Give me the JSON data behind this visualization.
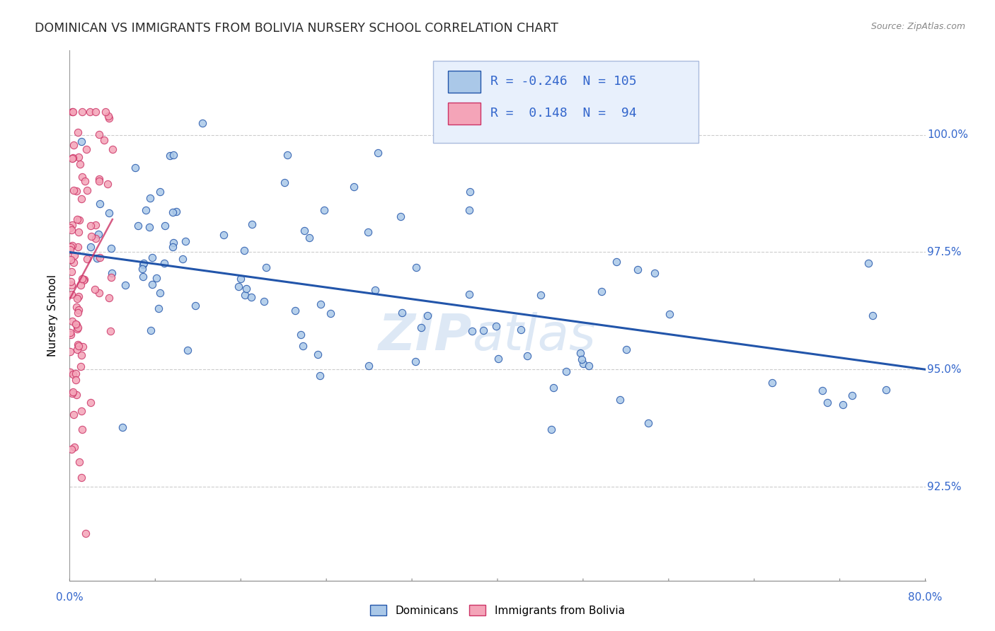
{
  "title": "DOMINICAN VS IMMIGRANTS FROM BOLIVIA NURSERY SCHOOL CORRELATION CHART",
  "source": "Source: ZipAtlas.com",
  "ylabel": "Nursery School",
  "ytick_labels": [
    "92.5%",
    "95.0%",
    "97.5%",
    "100.0%"
  ],
  "ytick_values": [
    92.5,
    95.0,
    97.5,
    100.0
  ],
  "xmin": 0.0,
  "xmax": 80.0,
  "ymin": 90.5,
  "ymax": 101.8,
  "blue_color": "#aac8e8",
  "pink_color": "#f4a4b8",
  "blue_line_color": "#2255aa",
  "pink_line_color": "#cc3366",
  "watermark_color": "#dde8f5",
  "legend_R_blue": "-0.246",
  "legend_N_blue": "105",
  "legend_R_pink": "0.148",
  "legend_N_pink": "94",
  "blue_trend_x0": 0.0,
  "blue_trend_y0": 97.5,
  "blue_trend_x1": 80.0,
  "blue_trend_y1": 95.0,
  "pink_trend_x0": 0.0,
  "pink_trend_y0": 96.5,
  "pink_trend_x1": 4.0,
  "pink_trend_y1": 98.2
}
